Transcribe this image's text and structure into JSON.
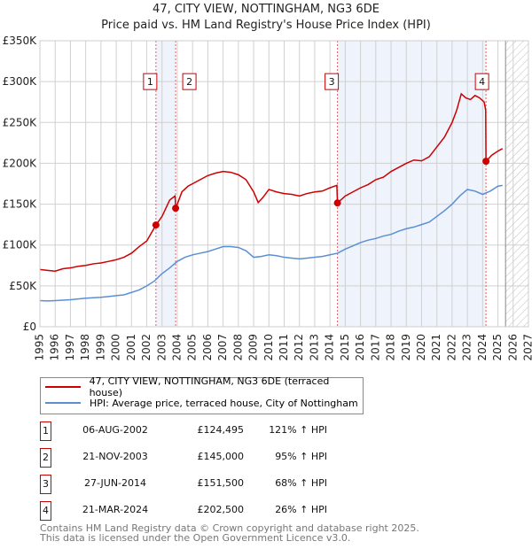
{
  "chart_data": {
    "type": "line",
    "title": "47, CITY VIEW, NOTTINGHAM, NG3 6DE",
    "subtitle": "Price paid vs. HM Land Registry's House Price Index (HPI)",
    "xlim": [
      1995,
      2027
    ],
    "ylim": [
      0,
      350000
    ],
    "x_ticks": [
      "1995",
      "1996",
      "1997",
      "1998",
      "1999",
      "2000",
      "2001",
      "2002",
      "2003",
      "2004",
      "2005",
      "2006",
      "2007",
      "2008",
      "2009",
      "2010",
      "2011",
      "2012",
      "2013",
      "2014",
      "2015",
      "2016",
      "2017",
      "2018",
      "2019",
      "2020",
      "2021",
      "2022",
      "2023",
      "2024",
      "2025",
      "2026",
      "2027"
    ],
    "y_ticks": [
      {
        "v": 0,
        "label": "£0"
      },
      {
        "v": 50000,
        "label": "£50K"
      },
      {
        "v": 100000,
        "label": "£100K"
      },
      {
        "v": 150000,
        "label": "£150K"
      },
      {
        "v": 200000,
        "label": "£200K"
      },
      {
        "v": 250000,
        "label": "£250K"
      },
      {
        "v": 300000,
        "label": "£300K"
      },
      {
        "v": 350000,
        "label": "£350K"
      }
    ],
    "grid": true,
    "shaded_ranges": [
      [
        2002.6,
        2003.9
      ],
      [
        2014.49,
        2024.22
      ]
    ],
    "forecast_hatch_from": 2025.5,
    "series": [
      {
        "name": "47, CITY VIEW, NOTTINGHAM, NG3 6DE (terraced house)",
        "color": "#cc0000",
        "x": [
          1995,
          1995.5,
          1996,
          1996.5,
          1997,
          1997.5,
          1998,
          1998.5,
          1999,
          1999.5,
          2000,
          2000.5,
          2001,
          2001.5,
          2002,
          2002.6,
          2003,
          2003.5,
          2003.85,
          2003.9,
          2004.3,
          2004.7,
          2005,
          2005.5,
          2006,
          2006.5,
          2007,
          2007.5,
          2008,
          2008.5,
          2009,
          2009.3,
          2009.6,
          2010,
          2010.5,
          2011,
          2011.5,
          2012,
          2012.5,
          2013,
          2013.5,
          2014,
          2014.45,
          2014.49,
          2015,
          2015.5,
          2016,
          2016.5,
          2017,
          2017.5,
          2018,
          2018.5,
          2019,
          2019.5,
          2020,
          2020.5,
          2021,
          2021.5,
          2022,
          2022.3,
          2022.6,
          2022.9,
          2023.2,
          2023.5,
          2023.8,
          2024.1,
          2024.2,
          2024.22,
          2024.6,
          2025,
          2025.3
        ],
        "y": [
          70000,
          69000,
          68000,
          71000,
          72000,
          74000,
          75000,
          77000,
          78000,
          80000,
          82000,
          85000,
          90000,
          98000,
          105000,
          124495,
          135000,
          155000,
          160000,
          145000,
          165000,
          172000,
          175000,
          180000,
          185000,
          188000,
          190000,
          189000,
          186000,
          180000,
          165000,
          152000,
          158000,
          168000,
          165000,
          163000,
          162000,
          160000,
          163000,
          165000,
          166000,
          170000,
          173000,
          151500,
          160000,
          165000,
          170000,
          174000,
          180000,
          183000,
          190000,
          195000,
          200000,
          204000,
          203000,
          208000,
          220000,
          232000,
          250000,
          265000,
          285000,
          280000,
          278000,
          283000,
          280000,
          275000,
          265000,
          202500,
          210000,
          215000,
          218000
        ]
      },
      {
        "name": "HPI: Average price, terraced house, City of Nottingham",
        "color": "#5b8fd4",
        "x": [
          1995,
          1995.5,
          1996,
          1996.5,
          1997,
          1997.5,
          1998,
          1998.5,
          1999,
          1999.5,
          2000,
          2000.5,
          2001,
          2001.5,
          2002,
          2002.5,
          2003,
          2003.5,
          2004,
          2004.5,
          2005,
          2005.5,
          2006,
          2006.5,
          2007,
          2007.5,
          2008,
          2008.5,
          2009,
          2009.5,
          2010,
          2010.5,
          2011,
          2011.5,
          2012,
          2012.5,
          2013,
          2013.5,
          2014,
          2014.5,
          2015,
          2015.5,
          2016,
          2016.5,
          2017,
          2017.5,
          2018,
          2018.5,
          2019,
          2019.5,
          2020,
          2020.5,
          2021,
          2021.5,
          2022,
          2022.5,
          2023,
          2023.5,
          2024,
          2024.5,
          2025,
          2025.3
        ],
        "y": [
          32000,
          31500,
          32000,
          32500,
          33000,
          34000,
          35000,
          35500,
          36000,
          37000,
          38000,
          39000,
          42000,
          45000,
          50000,
          56000,
          65000,
          72000,
          80000,
          85000,
          88000,
          90000,
          92000,
          95000,
          98000,
          98000,
          97000,
          93000,
          85000,
          86000,
          88000,
          87000,
          85000,
          84000,
          83000,
          84000,
          85000,
          86000,
          88000,
          90000,
          95000,
          99000,
          103000,
          106000,
          108000,
          111000,
          113000,
          117000,
          120000,
          122000,
          125000,
          128000,
          135000,
          142000,
          150000,
          160000,
          168000,
          166000,
          162000,
          166000,
          172000,
          173000
        ]
      }
    ],
    "sales": [
      {
        "id": "1",
        "x": 2002.6,
        "y": 124495,
        "date": "06-AUG-2002",
        "price": "£124,495",
        "hpi": "121% ↑ HPI"
      },
      {
        "id": "2",
        "x": 2003.89,
        "y": 145000,
        "date": "21-NOV-2003",
        "price": "£145,000",
        "hpi": "95% ↑ HPI"
      },
      {
        "id": "3",
        "x": 2014.49,
        "y": 151500,
        "date": "27-JUN-2014",
        "price": "£151,500",
        "hpi": "68% ↑ HPI"
      },
      {
        "id": "4",
        "x": 2024.22,
        "y": 202500,
        "date": "21-MAR-2024",
        "price": "£202,500",
        "hpi": "26% ↑ HPI"
      }
    ],
    "legend_position": "below"
  },
  "footer": {
    "line1": "Contains HM Land Registry data © Crown copyright and database right 2025.",
    "line2": "This data is licensed under the Open Government Licence v3.0."
  }
}
